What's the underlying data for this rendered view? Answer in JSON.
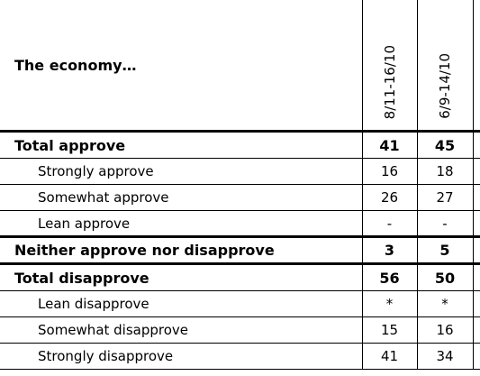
{
  "header": {
    "title": "The economy…",
    "columns": [
      "8/11-16/10",
      "6/9-14/10"
    ]
  },
  "table": {
    "rows": [
      [
        "Total approve",
        41,
        45
      ],
      [
        "Strongly approve",
        16,
        18
      ],
      [
        "Somewhat approve",
        26,
        27
      ],
      [
        "Lean approve",
        "-",
        "-"
      ],
      [
        "Neither approve nor disapprove",
        3,
        5
      ],
      [
        "Total disapprove",
        56,
        50
      ],
      [
        "Lean disapprove",
        "*",
        "*"
      ],
      [
        "Somewhat disapprove",
        15,
        16
      ],
      [
        "Strongly disapprove",
        41,
        34
      ]
    ]
  }
}
